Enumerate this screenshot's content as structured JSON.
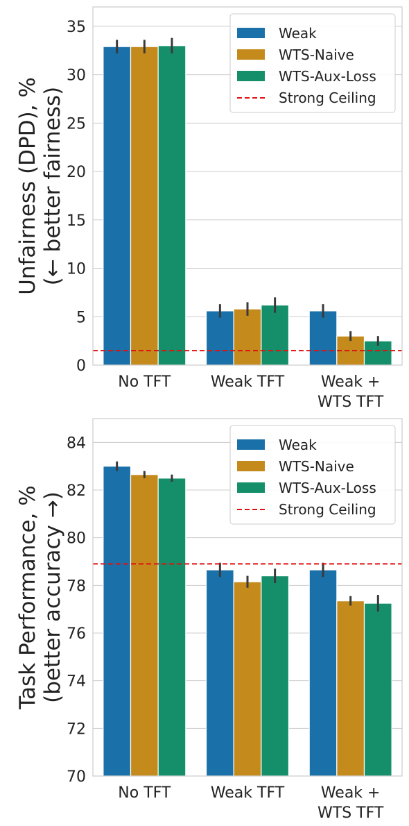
{
  "chart_data": [
    {
      "type": "bar",
      "categories": [
        "No TFT",
        "Weak TFT",
        "Weak +\nWTS TFT"
      ],
      "ylabel": "Unfairness (DPD), %\n(← better fairness)",
      "ylim": [
        0,
        37
      ],
      "yticks": [
        0,
        5,
        10,
        15,
        20,
        25,
        30,
        35
      ],
      "grid": true,
      "legend_position": "top-right",
      "series": [
        {
          "name": "Weak",
          "color": "#1a70a8",
          "values": [
            32.9,
            5.6,
            5.6
          ],
          "err": [
            0.7,
            0.7,
            0.7
          ]
        },
        {
          "name": "WTS-Naive",
          "color": "#c58a1c",
          "values": [
            32.9,
            5.8,
            3.0
          ],
          "err": [
            0.7,
            0.7,
            0.5
          ]
        },
        {
          "name": "WTS-Aux-Loss",
          "color": "#158f6a",
          "values": [
            33.0,
            6.2,
            2.5
          ],
          "err": [
            0.8,
            0.8,
            0.5
          ]
        }
      ],
      "reference_line": {
        "name": "Strong Ceiling",
        "value": 1.5,
        "color": "#e01010",
        "style": "dashed"
      }
    },
    {
      "type": "bar",
      "categories": [
        "No TFT",
        "Weak TFT",
        "Weak +\nWTS TFT"
      ],
      "ylabel": "Task Performance, %\n(better accuracy →)",
      "ylim": [
        70,
        85
      ],
      "yticks": [
        70,
        72,
        74,
        76,
        78,
        80,
        82,
        84
      ],
      "grid": true,
      "legend_position": "top-right",
      "series": [
        {
          "name": "Weak",
          "color": "#1a70a8",
          "values": [
            83.0,
            78.65,
            78.65
          ],
          "err": [
            0.2,
            0.3,
            0.3
          ]
        },
        {
          "name": "WTS-Naive",
          "color": "#c58a1c",
          "values": [
            82.65,
            78.15,
            77.35
          ],
          "err": [
            0.15,
            0.25,
            0.2
          ]
        },
        {
          "name": "WTS-Aux-Loss",
          "color": "#158f6a",
          "values": [
            82.5,
            78.4,
            77.25
          ],
          "err": [
            0.15,
            0.3,
            0.35
          ]
        }
      ],
      "reference_line": {
        "name": "Strong Ceiling",
        "value": 78.9,
        "color": "#e01010",
        "style": "dashed"
      }
    }
  ]
}
